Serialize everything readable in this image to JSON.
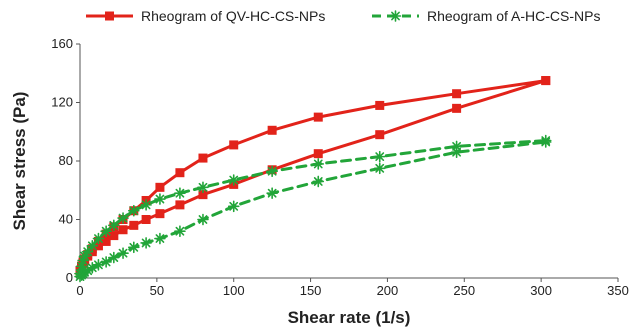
{
  "chart_data": {
    "type": "line",
    "title": "",
    "xlabel": "Shear rate (1/s)",
    "ylabel": "Shear stress (Pa)",
    "xlim": [
      0,
      350
    ],
    "ylim": [
      0,
      160
    ],
    "xticks": [
      0,
      50,
      100,
      150,
      200,
      250,
      300,
      350
    ],
    "yticks": [
      0,
      40,
      80,
      120,
      160
    ],
    "grid": false,
    "legend_position": "top",
    "series": [
      {
        "name": "Rheogram of QV-HC-CS-NPs",
        "color": "#e2231a",
        "line_style": "solid",
        "marker": "square",
        "x": [
          0,
          1,
          2,
          3,
          5,
          8,
          12,
          17,
          22,
          28,
          35,
          43,
          52,
          65,
          80,
          100,
          125,
          155,
          195,
          245,
          303,
          303,
          245,
          195,
          155,
          125,
          100,
          80,
          65,
          52,
          43,
          35,
          28,
          22,
          17,
          12,
          8,
          5,
          3,
          2,
          1,
          0
        ],
        "y": [
          5,
          8,
          11,
          13,
          16,
          20,
          25,
          30,
          35,
          40,
          46,
          53,
          62,
          72,
          82,
          91,
          101,
          110,
          118,
          126,
          135,
          135,
          116,
          98,
          85,
          74,
          64,
          57,
          50,
          44,
          40,
          36,
          33,
          29,
          25,
          22,
          18,
          15,
          12,
          10,
          8,
          5
        ]
      },
      {
        "name": "Rheogram of A-HC-CS-NPs",
        "color": "#22a539",
        "line_style": "dashed",
        "marker": "asterisk",
        "x": [
          0,
          1,
          2,
          3,
          5,
          8,
          12,
          17,
          22,
          28,
          35,
          43,
          52,
          65,
          80,
          100,
          125,
          155,
          195,
          245,
          303,
          303,
          245,
          195,
          155,
          125,
          100,
          80,
          65,
          52,
          43,
          35,
          28,
          22,
          17,
          12,
          8,
          5,
          3,
          2,
          1,
          0
        ],
        "y": [
          3,
          8,
          12,
          15,
          18,
          22,
          27,
          32,
          36,
          41,
          46,
          50,
          54,
          58,
          62,
          67,
          73,
          78,
          83,
          90,
          94,
          93,
          86,
          75,
          66,
          58,
          49,
          40,
          32,
          27,
          24,
          21,
          17,
          14,
          11,
          9,
          7,
          5,
          4,
          3,
          2,
          1
        ]
      }
    ]
  }
}
